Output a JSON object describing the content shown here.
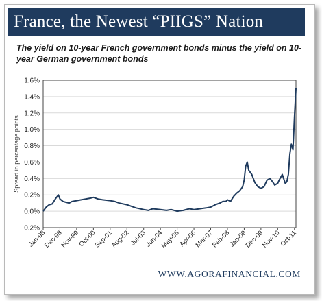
{
  "header": {
    "title": "France, the Newest “PIIGS” Nation",
    "title_bg": "#1f3b5e"
  },
  "chart_data": {
    "type": "line",
    "title": "The yield on 10-year French government bonds minus the yield on 10-year German government bonds",
    "xlabel": "",
    "ylabel": "Spread in percentage points",
    "ylim": [
      -0.2,
      1.6
    ],
    "yticks": [
      "-0.2%",
      "0.0%",
      "0.2%",
      "0.4%",
      "0.6%",
      "0.8%",
      "1.0%",
      "1.2%",
      "1.4%",
      "1.6%"
    ],
    "xticks": [
      "Jan-98",
      "Dec-98",
      "Nov-99",
      "Oct-00",
      "Sep-01",
      "Aug-02",
      "Jul-03",
      "Jun-04",
      "May-05",
      "Apr-06",
      "Mar-07",
      "Feb-08",
      "Jan-09",
      "Dec-09",
      "Nov-10",
      "Oct-11"
    ],
    "grid": true,
    "line_color": "#1f3b5e",
    "series": [
      {
        "name": "",
        "x": [
          "Jan-98",
          "Mar-98",
          "May-98",
          "Jul-98",
          "Sep-98",
          "Nov-98",
          "Dec-98",
          "Feb-99",
          "Apr-99",
          "Jun-99",
          "Aug-99",
          "Nov-99",
          "Feb-00",
          "May-00",
          "Aug-00",
          "Oct-00",
          "Jan-01",
          "Apr-01",
          "Sep-01",
          "Dec-01",
          "Mar-02",
          "Aug-02",
          "Nov-02",
          "Feb-03",
          "Jul-03",
          "Oct-03",
          "Jan-04",
          "Jun-04",
          "Oct-04",
          "Jan-05",
          "May-05",
          "Sep-05",
          "Jan-06",
          "Apr-06",
          "Aug-06",
          "Dec-06",
          "Mar-07",
          "Jun-07",
          "Sep-07",
          "Nov-07",
          "Jan-08",
          "Feb-08",
          "Apr-08",
          "Jun-08",
          "Aug-08",
          "Oct-08",
          "Dec-08",
          "Jan-09",
          "Feb-09",
          "Mar-09",
          "Apr-09",
          "Jun-09",
          "Aug-09",
          "Oct-09",
          "Dec-09",
          "Feb-10",
          "Apr-10",
          "Jun-10",
          "Aug-10",
          "Sep-10",
          "Nov-10",
          "Dec-10",
          "Feb-11",
          "Apr-11",
          "May-11",
          "Jun-11",
          "Jul-11",
          "Aug-11",
          "Sep-11",
          "Oct-11",
          "Nov-11"
        ],
        "values": [
          0.0,
          0.05,
          0.08,
          0.09,
          0.15,
          0.2,
          0.15,
          0.12,
          0.11,
          0.1,
          0.12,
          0.13,
          0.14,
          0.15,
          0.16,
          0.17,
          0.15,
          0.14,
          0.13,
          0.12,
          0.1,
          0.08,
          0.06,
          0.04,
          0.02,
          0.01,
          0.03,
          0.02,
          0.01,
          0.02,
          0.0,
          0.01,
          0.03,
          0.02,
          0.03,
          0.04,
          0.05,
          0.08,
          0.1,
          0.12,
          0.12,
          0.14,
          0.12,
          0.18,
          0.22,
          0.25,
          0.3,
          0.38,
          0.55,
          0.6,
          0.5,
          0.45,
          0.35,
          0.3,
          0.28,
          0.3,
          0.38,
          0.4,
          0.35,
          0.32,
          0.34,
          0.38,
          0.45,
          0.34,
          0.36,
          0.45,
          0.7,
          0.82,
          0.75,
          1.15,
          1.5
        ]
      }
    ]
  },
  "footer": {
    "source": "WWW.AGORAFINANCIAL.COM"
  }
}
